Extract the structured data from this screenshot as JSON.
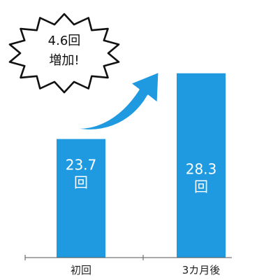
{
  "colors": {
    "bar": "#1f9ae0",
    "arrow": "#1f9ae0",
    "axis": "#555555",
    "burst_stroke": "#111111"
  },
  "callout": {
    "line1": "4.6回",
    "line2": "増加!"
  },
  "chart_data": {
    "type": "bar",
    "categories": [
      "初回",
      "3カ月後"
    ],
    "values": [
      23.7,
      28.3
    ],
    "value_labels": [
      [
        "23.7",
        "回"
      ],
      [
        "28.3",
        "回"
      ]
    ],
    "title": "",
    "xlabel": "",
    "ylabel": "",
    "ylim": [
      15.4,
      30.0
    ]
  }
}
